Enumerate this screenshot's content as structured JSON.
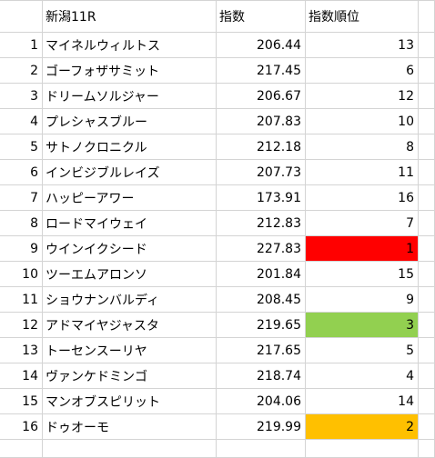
{
  "header": {
    "row_number": "",
    "name": "新潟11R",
    "index": "指数",
    "rank": "指数順位"
  },
  "rows": [
    {
      "n": "1",
      "name": "マイネルウィルトス",
      "index": "206.44",
      "rank": "13",
      "highlight": ""
    },
    {
      "n": "2",
      "name": "ゴーフォザサミット",
      "index": "217.45",
      "rank": "6",
      "highlight": ""
    },
    {
      "n": "3",
      "name": "ドリームソルジャー",
      "index": "206.67",
      "rank": "12",
      "highlight": ""
    },
    {
      "n": "4",
      "name": "プレシャスブルー",
      "index": "207.83",
      "rank": "10",
      "highlight": ""
    },
    {
      "n": "5",
      "name": "サトノクロニクル",
      "index": "212.18",
      "rank": "8",
      "highlight": ""
    },
    {
      "n": "6",
      "name": "インビジブルレイズ",
      "index": "207.73",
      "rank": "11",
      "highlight": ""
    },
    {
      "n": "7",
      "name": "ハッピーアワー",
      "index": "173.91",
      "rank": "16",
      "highlight": ""
    },
    {
      "n": "8",
      "name": "ロードマイウェイ",
      "index": "212.83",
      "rank": "7",
      "highlight": ""
    },
    {
      "n": "9",
      "name": "ウインイクシード",
      "index": "227.83",
      "rank": "1",
      "highlight": "#ff0000"
    },
    {
      "n": "10",
      "name": "ツーエムアロンソ",
      "index": "201.84",
      "rank": "15",
      "highlight": ""
    },
    {
      "n": "11",
      "name": "ショウナンバルディ",
      "index": "208.45",
      "rank": "9",
      "highlight": ""
    },
    {
      "n": "12",
      "name": "アドマイヤジャスタ",
      "index": "219.65",
      "rank": "3",
      "highlight": "#92d050"
    },
    {
      "n": "13",
      "name": "トーセンスーリヤ",
      "index": "217.65",
      "rank": "5",
      "highlight": ""
    },
    {
      "n": "14",
      "name": "ヴァンケドミンゴ",
      "index": "218.74",
      "rank": "4",
      "highlight": ""
    },
    {
      "n": "15",
      "name": "マンオブスピリット",
      "index": "204.06",
      "rank": "14",
      "highlight": ""
    },
    {
      "n": "16",
      "name": "ドゥオーモ",
      "index": "219.99",
      "rank": "2",
      "highlight": "#ffc000"
    }
  ],
  "colors": {
    "gridline": "#d4d4d4",
    "rank1": "#ff0000",
    "rank2": "#ffc000",
    "rank3": "#92d050"
  }
}
